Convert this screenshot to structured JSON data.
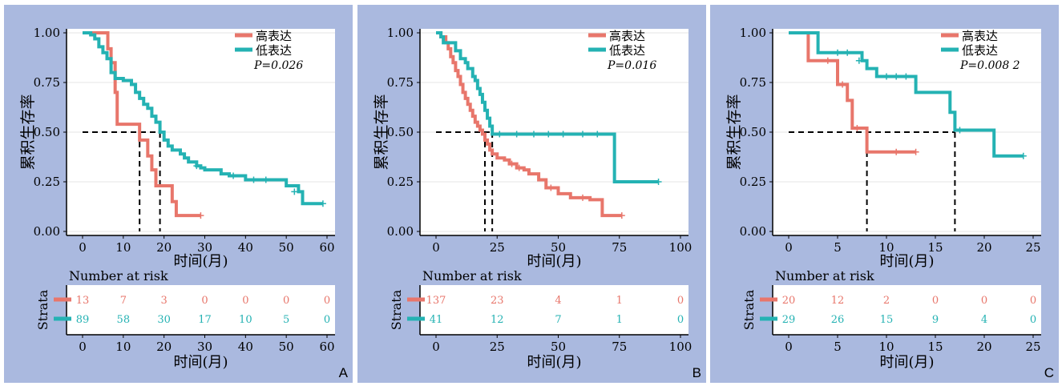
{
  "colors": {
    "high": "#e8766b",
    "low": "#24b2b3",
    "median": "#000000",
    "panel_bg": "#aab9df"
  },
  "shared": {
    "y_label": "累积生存率",
    "x_label": "时间(月)",
    "legend_high": "高表达",
    "legend_low": "低表达",
    "risk_title": "Number at risk",
    "strata_label": "Strata"
  },
  "chart_data": [
    {
      "type": "line",
      "panel": "A",
      "p_value": "P=0.026",
      "xlim": [
        0,
        60
      ],
      "ylim": [
        0,
        1
      ],
      "x_ticks": [
        "0",
        "10",
        "20",
        "30",
        "40",
        "50",
        "60"
      ],
      "y_ticks": [
        "0.00",
        "0.25",
        "0.50",
        "0.75",
        "1.00"
      ],
      "medians": [
        14,
        19
      ],
      "series": [
        {
          "name": "高表达",
          "color": "high",
          "points": [
            [
              0,
              1
            ],
            [
              6,
              1
            ],
            [
              6.2,
              0.92
            ],
            [
              7,
              0.85
            ],
            [
              8,
              0.7
            ],
            [
              8.5,
              0.54
            ],
            [
              14,
              0.54
            ],
            [
              14,
              0.46
            ],
            [
              16,
              0.38
            ],
            [
              17,
              0.31
            ],
            [
              18,
              0.23
            ],
            [
              22,
              0.15
            ],
            [
              23,
              0.08
            ],
            [
              29,
              0.08
            ]
          ],
          "censors": [
            [
              29,
              0.08
            ]
          ]
        },
        {
          "name": "低表达",
          "color": "low",
          "points": [
            [
              0,
              1
            ],
            [
              2,
              0.99
            ],
            [
              3,
              0.97
            ],
            [
              4,
              0.93
            ],
            [
              5,
              0.9
            ],
            [
              6,
              0.87
            ],
            [
              7,
              0.8
            ],
            [
              8,
              0.77
            ],
            [
              10,
              0.76
            ],
            [
              12,
              0.74
            ],
            [
              13,
              0.7
            ],
            [
              14,
              0.67
            ],
            [
              15,
              0.64
            ],
            [
              16,
              0.62
            ],
            [
              17,
              0.58
            ],
            [
              18,
              0.55
            ],
            [
              19,
              0.5
            ],
            [
              20,
              0.46
            ],
            [
              21,
              0.43
            ],
            [
              22,
              0.41
            ],
            [
              24,
              0.39
            ],
            [
              25,
              0.37
            ],
            [
              26,
              0.35
            ],
            [
              28,
              0.33
            ],
            [
              29,
              0.32
            ],
            [
              30,
              0.31
            ],
            [
              34,
              0.29
            ],
            [
              36,
              0.28
            ],
            [
              40,
              0.26
            ],
            [
              47,
              0.26
            ],
            [
              50,
              0.23
            ],
            [
              53,
              0.2
            ],
            [
              54,
              0.14
            ],
            [
              59,
              0.14
            ]
          ],
          "censors": [
            [
              28,
              0.33
            ],
            [
              37,
              0.28
            ],
            [
              42,
              0.26
            ],
            [
              45,
              0.26
            ],
            [
              52,
              0.2
            ],
            [
              59,
              0.14
            ]
          ]
        }
      ],
      "risk_table": {
        "times": [
          "0",
          "10",
          "20",
          "30",
          "40",
          "50",
          "60"
        ],
        "rows": [
          {
            "color": "high",
            "values": [
              "13",
              "7",
              "3",
              "0",
              "0",
              "0",
              "0"
            ]
          },
          {
            "color": "low",
            "values": [
              "89",
              "58",
              "30",
              "17",
              "10",
              "5",
              "0"
            ]
          }
        ]
      }
    },
    {
      "type": "line",
      "panel": "B",
      "p_value": "P=0.016",
      "xlim": [
        0,
        100
      ],
      "ylim": [
        0,
        1
      ],
      "x_ticks": [
        "0",
        "25",
        "50",
        "75",
        "100"
      ],
      "y_ticks": [
        "0.00",
        "0.25",
        "0.50",
        "0.75",
        "1.00"
      ],
      "medians": [
        20,
        23
      ],
      "series": [
        {
          "name": "高表达",
          "color": "high",
          "points": [
            [
              0,
              1
            ],
            [
              2,
              0.98
            ],
            [
              4,
              0.95
            ],
            [
              5,
              0.92
            ],
            [
              6,
              0.88
            ],
            [
              7,
              0.85
            ],
            [
              8,
              0.81
            ],
            [
              9,
              0.78
            ],
            [
              10,
              0.74
            ],
            [
              11,
              0.7
            ],
            [
              12,
              0.67
            ],
            [
              13,
              0.64
            ],
            [
              14,
              0.61
            ],
            [
              15,
              0.58
            ],
            [
              16,
              0.55
            ],
            [
              17,
              0.53
            ],
            [
              18,
              0.51
            ],
            [
              19,
              0.49
            ],
            [
              20,
              0.46
            ],
            [
              21,
              0.44
            ],
            [
              22,
              0.41
            ],
            [
              23,
              0.39
            ],
            [
              25,
              0.37
            ],
            [
              28,
              0.36
            ],
            [
              30,
              0.34
            ],
            [
              33,
              0.32
            ],
            [
              36,
              0.31
            ],
            [
              38,
              0.29
            ],
            [
              42,
              0.26
            ],
            [
              45,
              0.22
            ],
            [
              50,
              0.19
            ],
            [
              55,
              0.17
            ],
            [
              63,
              0.16
            ],
            [
              68,
              0.08
            ],
            [
              76,
              0.08
            ]
          ],
          "censors": [
            [
              31,
              0.34
            ],
            [
              34,
              0.32
            ],
            [
              47,
              0.22
            ],
            [
              60,
              0.17
            ],
            [
              76,
              0.08
            ]
          ]
        },
        {
          "name": "低表达",
          "color": "low",
          "points": [
            [
              0,
              1
            ],
            [
              2,
              0.98
            ],
            [
              3,
              0.95
            ],
            [
              7,
              0.95
            ],
            [
              8,
              0.91
            ],
            [
              10,
              0.87
            ],
            [
              12,
              0.85
            ],
            [
              13,
              0.82
            ],
            [
              15,
              0.78
            ],
            [
              16,
              0.76
            ],
            [
              17,
              0.72
            ],
            [
              18,
              0.69
            ],
            [
              19,
              0.65
            ],
            [
              20,
              0.61
            ],
            [
              21,
              0.57
            ],
            [
              22,
              0.53
            ],
            [
              23,
              0.49
            ],
            [
              73,
              0.49
            ],
            [
              73,
              0.25
            ],
            [
              91,
              0.25
            ]
          ],
          "censors": [
            [
              26,
              0.49
            ],
            [
              33,
              0.49
            ],
            [
              40,
              0.49
            ],
            [
              46,
              0.49
            ],
            [
              52,
              0.49
            ],
            [
              60,
              0.49
            ],
            [
              66,
              0.49
            ],
            [
              91,
              0.25
            ]
          ]
        }
      ],
      "risk_table": {
        "times": [
          "0",
          "25",
          "50",
          "75",
          "100"
        ],
        "rows": [
          {
            "color": "high",
            "values": [
              "137",
              "23",
              "4",
              "1",
              "0"
            ]
          },
          {
            "color": "low",
            "values": [
              "41",
              "12",
              "7",
              "1",
              "0"
            ]
          }
        ]
      }
    },
    {
      "type": "line",
      "panel": "C",
      "p_value": "P=0.008 2",
      "xlim": [
        0,
        25
      ],
      "ylim": [
        0,
        1
      ],
      "x_ticks": [
        "0",
        "5",
        "10",
        "15",
        "20",
        "25"
      ],
      "y_ticks": [
        "0.00",
        "0.25",
        "0.50",
        "0.75",
        "1.00"
      ],
      "medians": [
        8,
        17
      ],
      "series": [
        {
          "name": "高表达",
          "color": "high",
          "points": [
            [
              0,
              1
            ],
            [
              2,
              1
            ],
            [
              2,
              0.86
            ],
            [
              4,
              0.86
            ],
            [
              5,
              0.74
            ],
            [
              6,
              0.66
            ],
            [
              6.5,
              0.52
            ],
            [
              8,
              0.52
            ],
            [
              8,
              0.4
            ],
            [
              13,
              0.4
            ]
          ],
          "censors": [
            [
              4,
              0.86
            ],
            [
              5.5,
              0.74
            ],
            [
              7,
              0.52
            ],
            [
              11,
              0.4
            ],
            [
              13,
              0.4
            ]
          ]
        },
        {
          "name": "低表达",
          "color": "low",
          "points": [
            [
              0,
              1
            ],
            [
              3,
              1
            ],
            [
              3,
              0.9
            ],
            [
              7,
              0.9
            ],
            [
              7.5,
              0.86
            ],
            [
              8,
              0.82
            ],
            [
              9,
              0.78
            ],
            [
              13,
              0.78
            ],
            [
              13,
              0.7
            ],
            [
              16,
              0.7
            ],
            [
              16.5,
              0.6
            ],
            [
              17,
              0.51
            ],
            [
              21,
              0.51
            ],
            [
              21,
              0.38
            ],
            [
              24,
              0.38
            ]
          ],
          "censors": [
            [
              5,
              0.9
            ],
            [
              6,
              0.9
            ],
            [
              7.2,
              0.86
            ],
            [
              10,
              0.78
            ],
            [
              11,
              0.78
            ],
            [
              12,
              0.78
            ],
            [
              17.5,
              0.51
            ],
            [
              24,
              0.38
            ]
          ]
        }
      ],
      "risk_table": {
        "times": [
          "0",
          "5",
          "10",
          "15",
          "20",
          "25"
        ],
        "rows": [
          {
            "color": "high",
            "values": [
              "20",
              "12",
              "2",
              "0",
              "0",
              "0"
            ]
          },
          {
            "color": "low",
            "values": [
              "29",
              "26",
              "15",
              "9",
              "4",
              "0"
            ]
          }
        ]
      }
    }
  ]
}
